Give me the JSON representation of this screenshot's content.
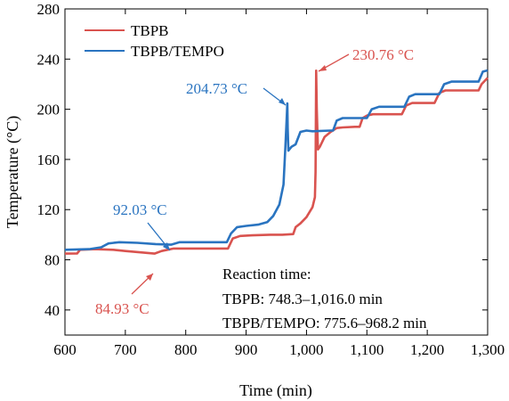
{
  "chart_data": {
    "type": "line",
    "xlabel": "Time (min)",
    "ylabel": "Temperature (°C)",
    "xlim": [
      600,
      1300
    ],
    "ylim": [
      20,
      280
    ],
    "x_ticks": [
      600,
      700,
      800,
      900,
      1000,
      1100,
      1200,
      1300
    ],
    "x_tick_labels": [
      "600",
      "700",
      "800",
      "900",
      "1,000",
      "1,100",
      "1,200",
      "1,300"
    ],
    "y_ticks": [
      40,
      80,
      120,
      160,
      200,
      240,
      280
    ],
    "y_tick_labels": [
      "40",
      "80",
      "120",
      "160",
      "200",
      "240",
      "280"
    ],
    "grid": false,
    "legend_position": "top-left",
    "series": [
      {
        "name": "TBPB",
        "color": "#d9534f",
        "points": [
          [
            600,
            84.9
          ],
          [
            620,
            85
          ],
          [
            625,
            88
          ],
          [
            650,
            88.5
          ],
          [
            680,
            88
          ],
          [
            700,
            87
          ],
          [
            748.3,
            84.93
          ],
          [
            760,
            87
          ],
          [
            780,
            89
          ],
          [
            820,
            89
          ],
          [
            860,
            89
          ],
          [
            870,
            89
          ],
          [
            878,
            97
          ],
          [
            890,
            99
          ],
          [
            910,
            99.5
          ],
          [
            940,
            100
          ],
          [
            960,
            100
          ],
          [
            978,
            100.5
          ],
          [
            982,
            106
          ],
          [
            990,
            109
          ],
          [
            1000,
            114
          ],
          [
            1010,
            122
          ],
          [
            1014,
            130
          ],
          [
            1015,
            150
          ],
          [
            1016,
            230.76
          ],
          [
            1017,
            200
          ],
          [
            1019,
            168
          ],
          [
            1022,
            170
          ],
          [
            1030,
            178
          ],
          [
            1040,
            182
          ],
          [
            1050,
            185
          ],
          [
            1060,
            185.5
          ],
          [
            1080,
            186
          ],
          [
            1088,
            186
          ],
          [
            1093,
            193
          ],
          [
            1100,
            195
          ],
          [
            1110,
            196
          ],
          [
            1140,
            196
          ],
          [
            1158,
            196
          ],
          [
            1165,
            203
          ],
          [
            1175,
            205
          ],
          [
            1200,
            205
          ],
          [
            1212,
            205
          ],
          [
            1220,
            213
          ],
          [
            1230,
            215
          ],
          [
            1270,
            215
          ],
          [
            1285,
            215
          ],
          [
            1290,
            220
          ],
          [
            1300,
            225
          ]
        ]
      },
      {
        "name": "TBPB/TEMPO",
        "color": "#2a74c0",
        "points": [
          [
            600,
            88
          ],
          [
            640,
            88.5
          ],
          [
            660,
            90
          ],
          [
            672,
            93
          ],
          [
            690,
            94
          ],
          [
            720,
            93.5
          ],
          [
            750,
            92.5
          ],
          [
            775.6,
            92.03
          ],
          [
            790,
            94
          ],
          [
            810,
            94
          ],
          [
            840,
            94
          ],
          [
            868,
            94
          ],
          [
            875,
            101
          ],
          [
            885,
            106
          ],
          [
            900,
            107
          ],
          [
            920,
            108
          ],
          [
            935,
            110
          ],
          [
            945,
            115
          ],
          [
            955,
            124
          ],
          [
            962,
            140
          ],
          [
            965,
            170
          ],
          [
            967,
            190
          ],
          [
            968.2,
            204.73
          ],
          [
            968.8,
            185
          ],
          [
            970,
            167
          ],
          [
            975,
            170
          ],
          [
            982,
            172
          ],
          [
            990,
            182
          ],
          [
            1000,
            183
          ],
          [
            1010,
            182.5
          ],
          [
            1040,
            183
          ],
          [
            1044,
            183
          ],
          [
            1050,
            191
          ],
          [
            1060,
            193
          ],
          [
            1090,
            193
          ],
          [
            1100,
            193
          ],
          [
            1108,
            200
          ],
          [
            1120,
            202
          ],
          [
            1150,
            202
          ],
          [
            1162,
            202
          ],
          [
            1170,
            210
          ],
          [
            1180,
            212
          ],
          [
            1205,
            212
          ],
          [
            1220,
            212
          ],
          [
            1228,
            220
          ],
          [
            1240,
            222
          ],
          [
            1270,
            222
          ],
          [
            1285,
            222
          ],
          [
            1292,
            230
          ],
          [
            1300,
            231
          ]
        ]
      }
    ],
    "annotations": [
      {
        "text": "230.76 °C",
        "series": "TBPB",
        "x": 1016,
        "y": 230.76
      },
      {
        "text": "204.73 °C",
        "series": "TBPB/TEMPO",
        "x": 968.2,
        "y": 204.73
      },
      {
        "text": "92.03 °C",
        "series": "TBPB/TEMPO",
        "x": 775.6,
        "y": 92.03
      },
      {
        "text": "84.93 °C",
        "series": "TBPB",
        "x": 748.3,
        "y": 84.93
      }
    ],
    "note_lines": [
      "Reaction time:",
      "TBPB: 748.3–1,016.0 min",
      "TBPB/TEMPO: 775.6–968.2 min"
    ]
  }
}
